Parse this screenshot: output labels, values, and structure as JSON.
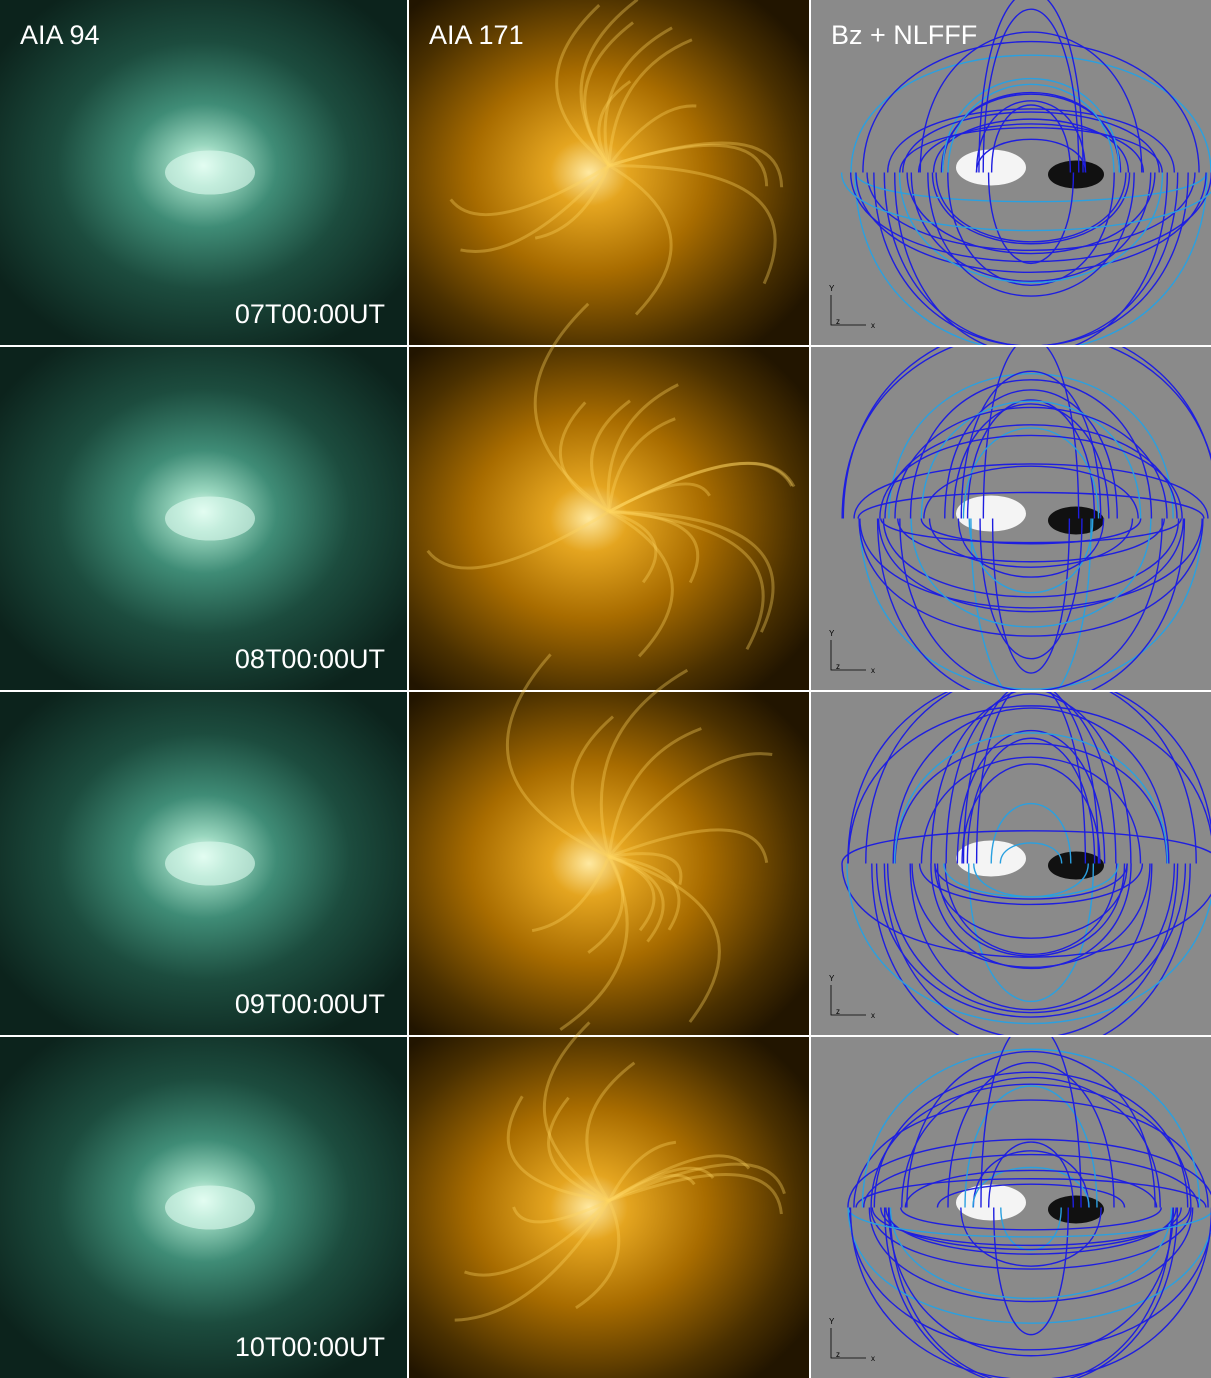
{
  "panels": {
    "columns": [
      "AIA 94",
      "AIA 171",
      "Bz + NLFFF"
    ],
    "rows": [
      {
        "time": "07T00:00UT"
      },
      {
        "time": "08T00:00UT"
      },
      {
        "time": "09T00:00UT"
      },
      {
        "time": "10T00:00UT"
      }
    ],
    "axes": {
      "y": "Y",
      "z": "z",
      "x": "x"
    }
  }
}
